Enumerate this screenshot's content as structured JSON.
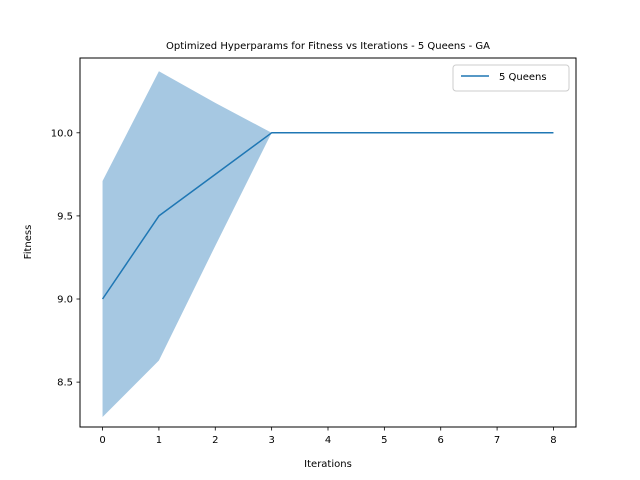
{
  "chart_data": {
    "type": "line",
    "title": "Optimized Hyperparams for Fitness vs Iterations - 5 Queens - GA",
    "xlabel": "Iterations",
    "ylabel": "Fitness",
    "xlim": [
      -0.4,
      8.4
    ],
    "ylim": [
      8.23,
      10.45
    ],
    "xticks": [
      0,
      1,
      2,
      3,
      4,
      5,
      6,
      7,
      8
    ],
    "yticks": [
      8.5,
      9.0,
      9.5,
      10.0
    ],
    "ytick_labels": [
      "8.5",
      "9.0",
      "9.5",
      "10.0"
    ],
    "grid": false,
    "legend_position": "top-right",
    "series": [
      {
        "name": "5 Queens",
        "color": "#1f77b4",
        "x": [
          0,
          1,
          2,
          3,
          4,
          5,
          6,
          7,
          8
        ],
        "values": [
          9.0,
          9.5,
          9.75,
          10.0,
          10.0,
          10.0,
          10.0,
          10.0,
          10.0
        ],
        "band_upper": [
          9.71,
          10.37,
          10.18,
          10.0,
          10.0,
          10.0,
          10.0,
          10.0,
          10.0
        ],
        "band_lower": [
          8.29,
          8.63,
          9.32,
          10.0,
          10.0,
          10.0,
          10.0,
          10.0,
          10.0
        ],
        "band_color": "#a6c8e2"
      }
    ]
  }
}
